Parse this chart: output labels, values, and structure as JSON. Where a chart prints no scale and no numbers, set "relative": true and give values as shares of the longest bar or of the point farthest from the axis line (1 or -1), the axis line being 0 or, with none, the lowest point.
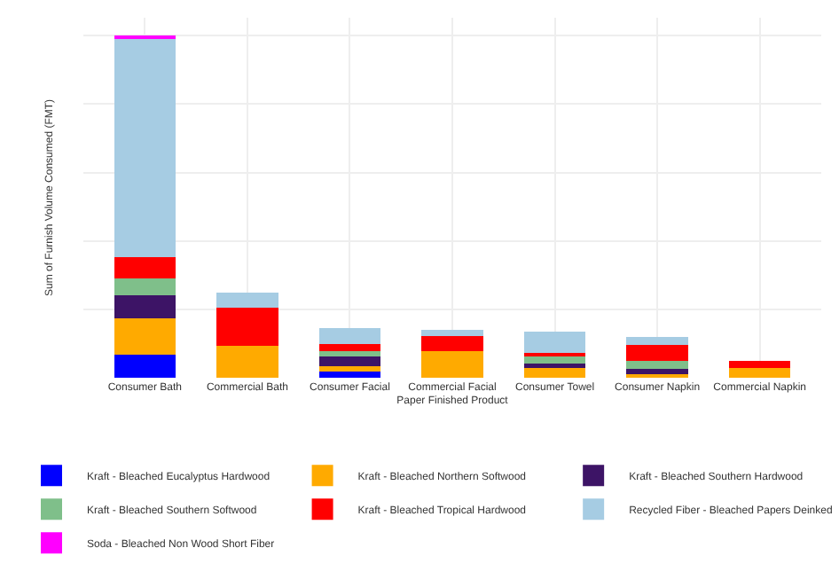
{
  "chart_data": {
    "type": "bar",
    "stacked": true,
    "relative": true,
    "xlabel": "Paper Finished Product",
    "ylabel": "Sum of Furnish Volume Consumed (FMT)",
    "grid": true,
    "legend": "bottom",
    "categories": [
      "Consumer Bath",
      "Commercial Bath",
      "Consumer Facial",
      "Commercial Facial",
      "Consumer Towel",
      "Consumer Napkin",
      "Commercial Napkin"
    ],
    "series": [
      {
        "name": "Kraft - Bleached Eucalyptus Hardwood",
        "color": "#0000ff",
        "values": [
          0.068,
          null,
          0.019,
          null,
          null,
          null,
          null
        ]
      },
      {
        "name": "Kraft - Bleached Northern Softwood",
        "color": "#ffaa00",
        "values": [
          0.107,
          0.094,
          0.015,
          0.078,
          0.029,
          0.011,
          0.029
        ]
      },
      {
        "name": "Kraft - Bleached Southern Hardwood",
        "color": "#3d1466",
        "values": [
          0.067,
          null,
          0.027,
          null,
          0.012,
          0.016,
          null
        ]
      },
      {
        "name": "Kraft - Bleached Southern Softwood",
        "color": "#7fbf8a",
        "values": [
          0.048,
          null,
          0.016,
          null,
          0.024,
          0.021,
          null
        ]
      },
      {
        "name": "Kraft - Bleached Tropical Hardwood",
        "color": "#ff0000",
        "values": [
          0.063,
          0.111,
          0.021,
          0.043,
          0.008,
          0.049,
          0.02
        ]
      },
      {
        "name": "Recycled Fiber - Bleached Papers Deinked",
        "color": "#a6cce3",
        "values": [
          0.638,
          0.044,
          0.048,
          0.02,
          0.061,
          0.023,
          null
        ]
      },
      {
        "name": "Soda - Bleached Non Wood Short Fiber",
        "color": "#ff00ff",
        "values": [
          0.009,
          null,
          null,
          null,
          null,
          null,
          null
        ]
      }
    ]
  }
}
